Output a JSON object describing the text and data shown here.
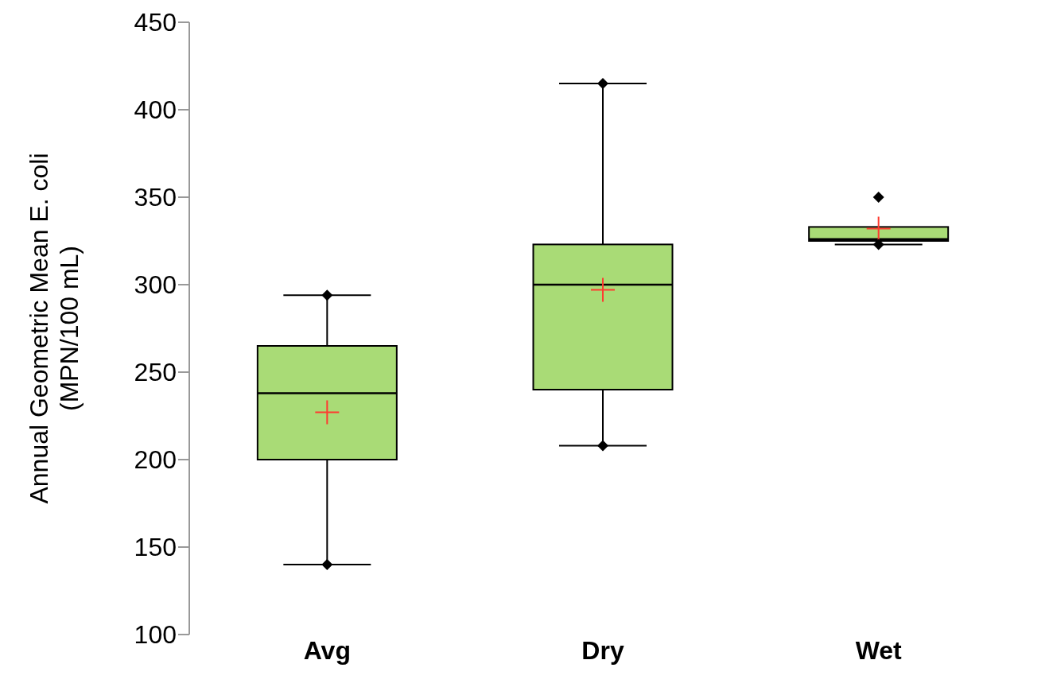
{
  "chart_data": {
    "type": "box",
    "ylabel": "Annual Geometric Mean E. coli\n(MPN/100 mL)",
    "categories": [
      "Avg",
      "Dry",
      "Wet"
    ],
    "color": "#a9db76",
    "marker": "diamond",
    "boxes": [
      {
        "low": 140,
        "q1": 200,
        "median": 238,
        "q3": 265,
        "high": 294,
        "mean": 227
      },
      {
        "low": 208,
        "q1": 240,
        "median": 300,
        "q3": 323,
        "high": 415,
        "mean": 297
      },
      {
        "low": 323,
        "q1": 325,
        "median": 326,
        "q3": 333,
        "high": 333,
        "mean": 332,
        "outliers": [
          350
        ]
      }
    ],
    "series": [
      {
        "type": "scatter",
        "x": [
          "Avg",
          "Avg",
          "Dry",
          "Dry",
          "Wet"
        ],
        "values": [
          294,
          140,
          415,
          208,
          323
        ],
        "color": "#000000",
        "marker": "diamond"
      }
    ],
    "ylim": [
      100,
      450
    ],
    "yticks": [
      100,
      150,
      200,
      250,
      300,
      350,
      400,
      450
    ]
  }
}
